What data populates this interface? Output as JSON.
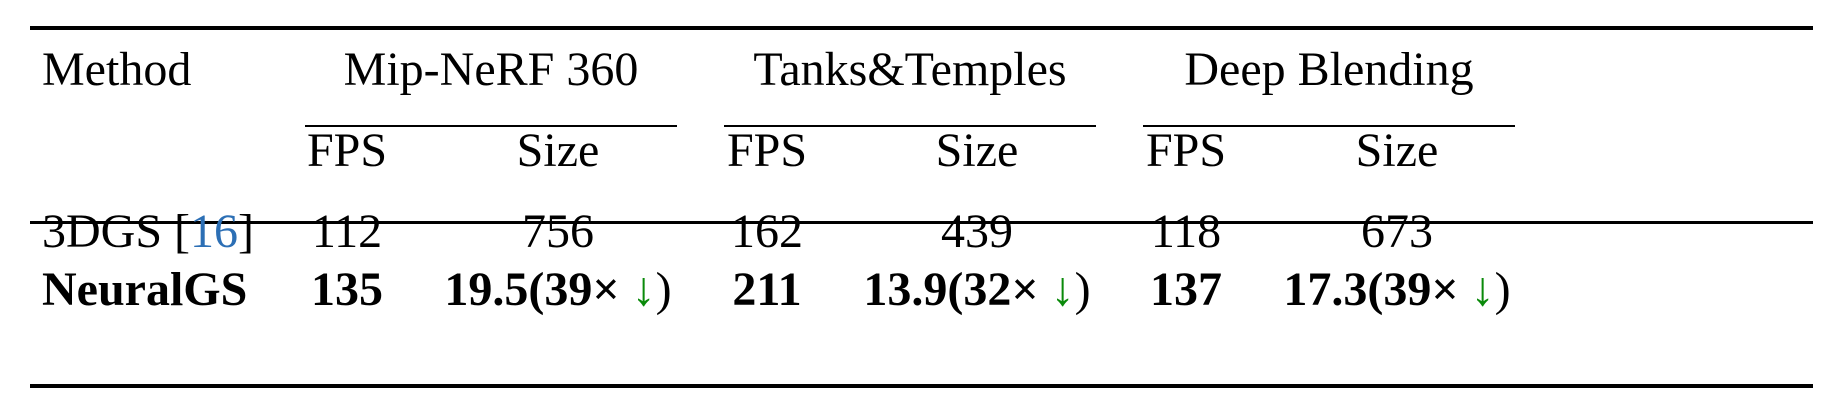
{
  "table": {
    "headers": {
      "method": "Method",
      "groups": [
        "Mip-NeRF 360",
        "Tanks&Temples",
        "Deep Blending"
      ],
      "subcolumns": [
        "FPS",
        "Size"
      ]
    },
    "rows": [
      {
        "method": "3DGS",
        "method_cite_open": "[",
        "method_cite": "16",
        "method_cite_close": "]",
        "values": [
          {
            "fps": "112",
            "size": "756"
          },
          {
            "fps": "162",
            "size": "439"
          },
          {
            "fps": "118",
            "size": "673"
          }
        ]
      },
      {
        "method": "NeuralGS",
        "bold": true,
        "values": [
          {
            "fps": "135",
            "size": "19.5",
            "ratio": "(39×",
            "arrow": "↓",
            "close": ")"
          },
          {
            "fps": "211",
            "size": "13.9",
            "ratio": "(32×",
            "arrow": "↓",
            "close": ")"
          },
          {
            "fps": "137",
            "size": "17.3",
            "ratio": "(39×",
            "arrow": "↓",
            "close": ")"
          }
        ]
      }
    ]
  },
  "colors": {
    "citation": "#2c6fb5",
    "arrow": "#0a8a0a"
  }
}
